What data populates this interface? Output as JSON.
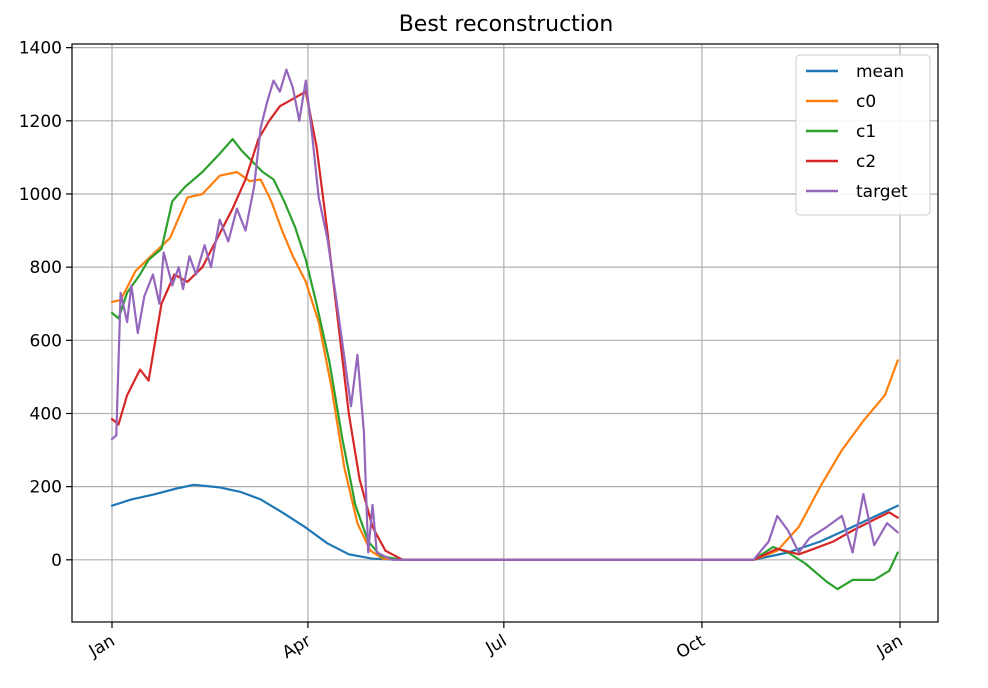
{
  "chart_data": {
    "type": "line",
    "title": "Best reconstruction",
    "xlabel": "",
    "ylabel": "",
    "x_range": [
      "2020-01-01",
      "2021-01-01"
    ],
    "ylim": [
      -170,
      1410
    ],
    "y_ticks": [
      0,
      200,
      400,
      600,
      800,
      1000,
      1200,
      1400
    ],
    "x_ticks": [
      {
        "date": "2020-01-01",
        "label": "Jan"
      },
      {
        "date": "2020-04-01",
        "label": "Apr"
      },
      {
        "date": "2020-07-01",
        "label": "Jul"
      },
      {
        "date": "2020-10-01",
        "label": "Oct"
      },
      {
        "date": "2021-01-01",
        "label": "Jan"
      }
    ],
    "grid": true,
    "legend_position": "top-right",
    "series": [
      {
        "name": "mean",
        "color": "#1f77b4",
        "points": [
          [
            "2020-01-01",
            148
          ],
          [
            "2020-01-10",
            165
          ],
          [
            "2020-01-20",
            178
          ],
          [
            "2020-01-31",
            195
          ],
          [
            "2020-02-08",
            205
          ],
          [
            "2020-02-20",
            198
          ],
          [
            "2020-03-01",
            185
          ],
          [
            "2020-03-10",
            165
          ],
          [
            "2020-03-20",
            130
          ],
          [
            "2020-03-31",
            88
          ],
          [
            "2020-04-10",
            45
          ],
          [
            "2020-04-20",
            15
          ],
          [
            "2020-05-01",
            3
          ],
          [
            "2020-05-15",
            0
          ],
          [
            "2020-07-01",
            0
          ],
          [
            "2020-10-01",
            0
          ],
          [
            "2020-10-25",
            0
          ],
          [
            "2020-11-10",
            20
          ],
          [
            "2020-11-25",
            50
          ],
          [
            "2020-12-10",
            90
          ],
          [
            "2020-12-31",
            148
          ]
        ]
      },
      {
        "name": "c0",
        "color": "#ff7f0e",
        "points": [
          [
            "2020-01-01",
            705
          ],
          [
            "2020-01-05",
            710
          ],
          [
            "2020-01-12",
            790
          ],
          [
            "2020-01-20",
            835
          ],
          [
            "2020-01-28",
            880
          ],
          [
            "2020-02-05",
            990
          ],
          [
            "2020-02-12",
            1000
          ],
          [
            "2020-02-20",
            1050
          ],
          [
            "2020-02-28",
            1060
          ],
          [
            "2020-03-05",
            1035
          ],
          [
            "2020-03-10",
            1040
          ],
          [
            "2020-03-15",
            980
          ],
          [
            "2020-03-20",
            900
          ],
          [
            "2020-03-25",
            830
          ],
          [
            "2020-03-31",
            760
          ],
          [
            "2020-04-06",
            650
          ],
          [
            "2020-04-12",
            470
          ],
          [
            "2020-04-18",
            250
          ],
          [
            "2020-04-24",
            100
          ],
          [
            "2020-04-30",
            25
          ],
          [
            "2020-05-06",
            3
          ],
          [
            "2020-05-15",
            0
          ],
          [
            "2020-07-01",
            0
          ],
          [
            "2020-10-01",
            0
          ],
          [
            "2020-10-25",
            0
          ],
          [
            "2020-11-05",
            25
          ],
          [
            "2020-11-15",
            90
          ],
          [
            "2020-11-25",
            200
          ],
          [
            "2020-12-05",
            300
          ],
          [
            "2020-12-15",
            380
          ],
          [
            "2020-12-25",
            450
          ],
          [
            "2020-12-31",
            545
          ]
        ]
      },
      {
        "name": "c1",
        "color": "#2ca02c",
        "points": [
          [
            "2020-01-01",
            675
          ],
          [
            "2020-01-04",
            660
          ],
          [
            "2020-01-08",
            730
          ],
          [
            "2020-01-14",
            780
          ],
          [
            "2020-01-18",
            820
          ],
          [
            "2020-01-24",
            850
          ],
          [
            "2020-01-29",
            980
          ],
          [
            "2020-02-04",
            1020
          ],
          [
            "2020-02-12",
            1060
          ],
          [
            "2020-02-20",
            1110
          ],
          [
            "2020-02-26",
            1150
          ],
          [
            "2020-03-01",
            1120
          ],
          [
            "2020-03-06",
            1090
          ],
          [
            "2020-03-11",
            1060
          ],
          [
            "2020-03-16",
            1040
          ],
          [
            "2020-03-21",
            980
          ],
          [
            "2020-03-26",
            910
          ],
          [
            "2020-03-31",
            820
          ],
          [
            "2020-04-05",
            700
          ],
          [
            "2020-04-11",
            540
          ],
          [
            "2020-04-17",
            330
          ],
          [
            "2020-04-23",
            150
          ],
          [
            "2020-04-29",
            50
          ],
          [
            "2020-05-05",
            10
          ],
          [
            "2020-05-15",
            0
          ],
          [
            "2020-07-01",
            0
          ],
          [
            "2020-10-01",
            0
          ],
          [
            "2020-10-25",
            0
          ],
          [
            "2020-11-03",
            35
          ],
          [
            "2020-11-10",
            20
          ],
          [
            "2020-11-18",
            -10
          ],
          [
            "2020-11-28",
            -60
          ],
          [
            "2020-12-03",
            -80
          ],
          [
            "2020-12-10",
            -55
          ],
          [
            "2020-12-20",
            -55
          ],
          [
            "2020-12-27",
            -30
          ],
          [
            "2020-12-31",
            20
          ]
        ]
      },
      {
        "name": "c2",
        "color": "#d62728",
        "points": [
          [
            "2020-01-01",
            385
          ],
          [
            "2020-01-04",
            370
          ],
          [
            "2020-01-08",
            450
          ],
          [
            "2020-01-14",
            520
          ],
          [
            "2020-01-18",
            490
          ],
          [
            "2020-01-24",
            700
          ],
          [
            "2020-01-30",
            780
          ],
          [
            "2020-02-05",
            760
          ],
          [
            "2020-02-12",
            800
          ],
          [
            "2020-02-19",
            880
          ],
          [
            "2020-02-26",
            960
          ],
          [
            "2020-03-03",
            1040
          ],
          [
            "2020-03-09",
            1150
          ],
          [
            "2020-03-14",
            1200
          ],
          [
            "2020-03-19",
            1240
          ],
          [
            "2020-03-25",
            1260
          ],
          [
            "2020-03-31",
            1280
          ],
          [
            "2020-04-05",
            1130
          ],
          [
            "2020-04-10",
            900
          ],
          [
            "2020-04-15",
            650
          ],
          [
            "2020-04-20",
            400
          ],
          [
            "2020-04-25",
            220
          ],
          [
            "2020-05-01",
            90
          ],
          [
            "2020-05-07",
            25
          ],
          [
            "2020-05-15",
            0
          ],
          [
            "2020-07-01",
            0
          ],
          [
            "2020-10-01",
            0
          ],
          [
            "2020-10-25",
            0
          ],
          [
            "2020-11-05",
            30
          ],
          [
            "2020-11-15",
            15
          ],
          [
            "2020-11-22",
            30
          ],
          [
            "2020-12-01",
            50
          ],
          [
            "2020-12-10",
            80
          ],
          [
            "2020-12-20",
            110
          ],
          [
            "2020-12-27",
            130
          ],
          [
            "2020-12-31",
            115
          ]
        ]
      },
      {
        "name": "target",
        "color": "#9467bd",
        "points": [
          [
            "2020-01-01",
            330
          ],
          [
            "2020-01-03",
            340
          ],
          [
            "2020-01-05",
            730
          ],
          [
            "2020-01-08",
            650
          ],
          [
            "2020-01-10",
            750
          ],
          [
            "2020-01-13",
            620
          ],
          [
            "2020-01-16",
            720
          ],
          [
            "2020-01-20",
            780
          ],
          [
            "2020-01-23",
            700
          ],
          [
            "2020-01-25",
            840
          ],
          [
            "2020-01-29",
            750
          ],
          [
            "2020-02-01",
            800
          ],
          [
            "2020-02-03",
            740
          ],
          [
            "2020-02-06",
            830
          ],
          [
            "2020-02-09",
            780
          ],
          [
            "2020-02-13",
            860
          ],
          [
            "2020-02-16",
            800
          ],
          [
            "2020-02-20",
            930
          ],
          [
            "2020-02-24",
            870
          ],
          [
            "2020-02-28",
            960
          ],
          [
            "2020-03-03",
            900
          ],
          [
            "2020-03-07",
            1020
          ],
          [
            "2020-03-10",
            1180
          ],
          [
            "2020-03-13",
            1250
          ],
          [
            "2020-03-16",
            1310
          ],
          [
            "2020-03-19",
            1280
          ],
          [
            "2020-03-22",
            1340
          ],
          [
            "2020-03-25",
            1290
          ],
          [
            "2020-03-28",
            1200
          ],
          [
            "2020-03-31",
            1310
          ],
          [
            "2020-04-03",
            1160
          ],
          [
            "2020-04-06",
            990
          ],
          [
            "2020-04-10",
            880
          ],
          [
            "2020-04-14",
            720
          ],
          [
            "2020-04-18",
            550
          ],
          [
            "2020-04-21",
            420
          ],
          [
            "2020-04-24",
            560
          ],
          [
            "2020-04-27",
            350
          ],
          [
            "2020-04-29",
            20
          ],
          [
            "2020-05-01",
            150
          ],
          [
            "2020-05-03",
            20
          ],
          [
            "2020-05-10",
            0
          ],
          [
            "2020-07-01",
            0
          ],
          [
            "2020-10-01",
            0
          ],
          [
            "2020-10-25",
            0
          ],
          [
            "2020-11-01",
            50
          ],
          [
            "2020-11-05",
            120
          ],
          [
            "2020-11-10",
            80
          ],
          [
            "2020-11-15",
            20
          ],
          [
            "2020-11-20",
            60
          ],
          [
            "2020-11-28",
            90
          ],
          [
            "2020-12-05",
            120
          ],
          [
            "2020-12-10",
            20
          ],
          [
            "2020-12-15",
            180
          ],
          [
            "2020-12-20",
            40
          ],
          [
            "2020-12-26",
            100
          ],
          [
            "2020-12-31",
            75
          ]
        ]
      }
    ]
  }
}
